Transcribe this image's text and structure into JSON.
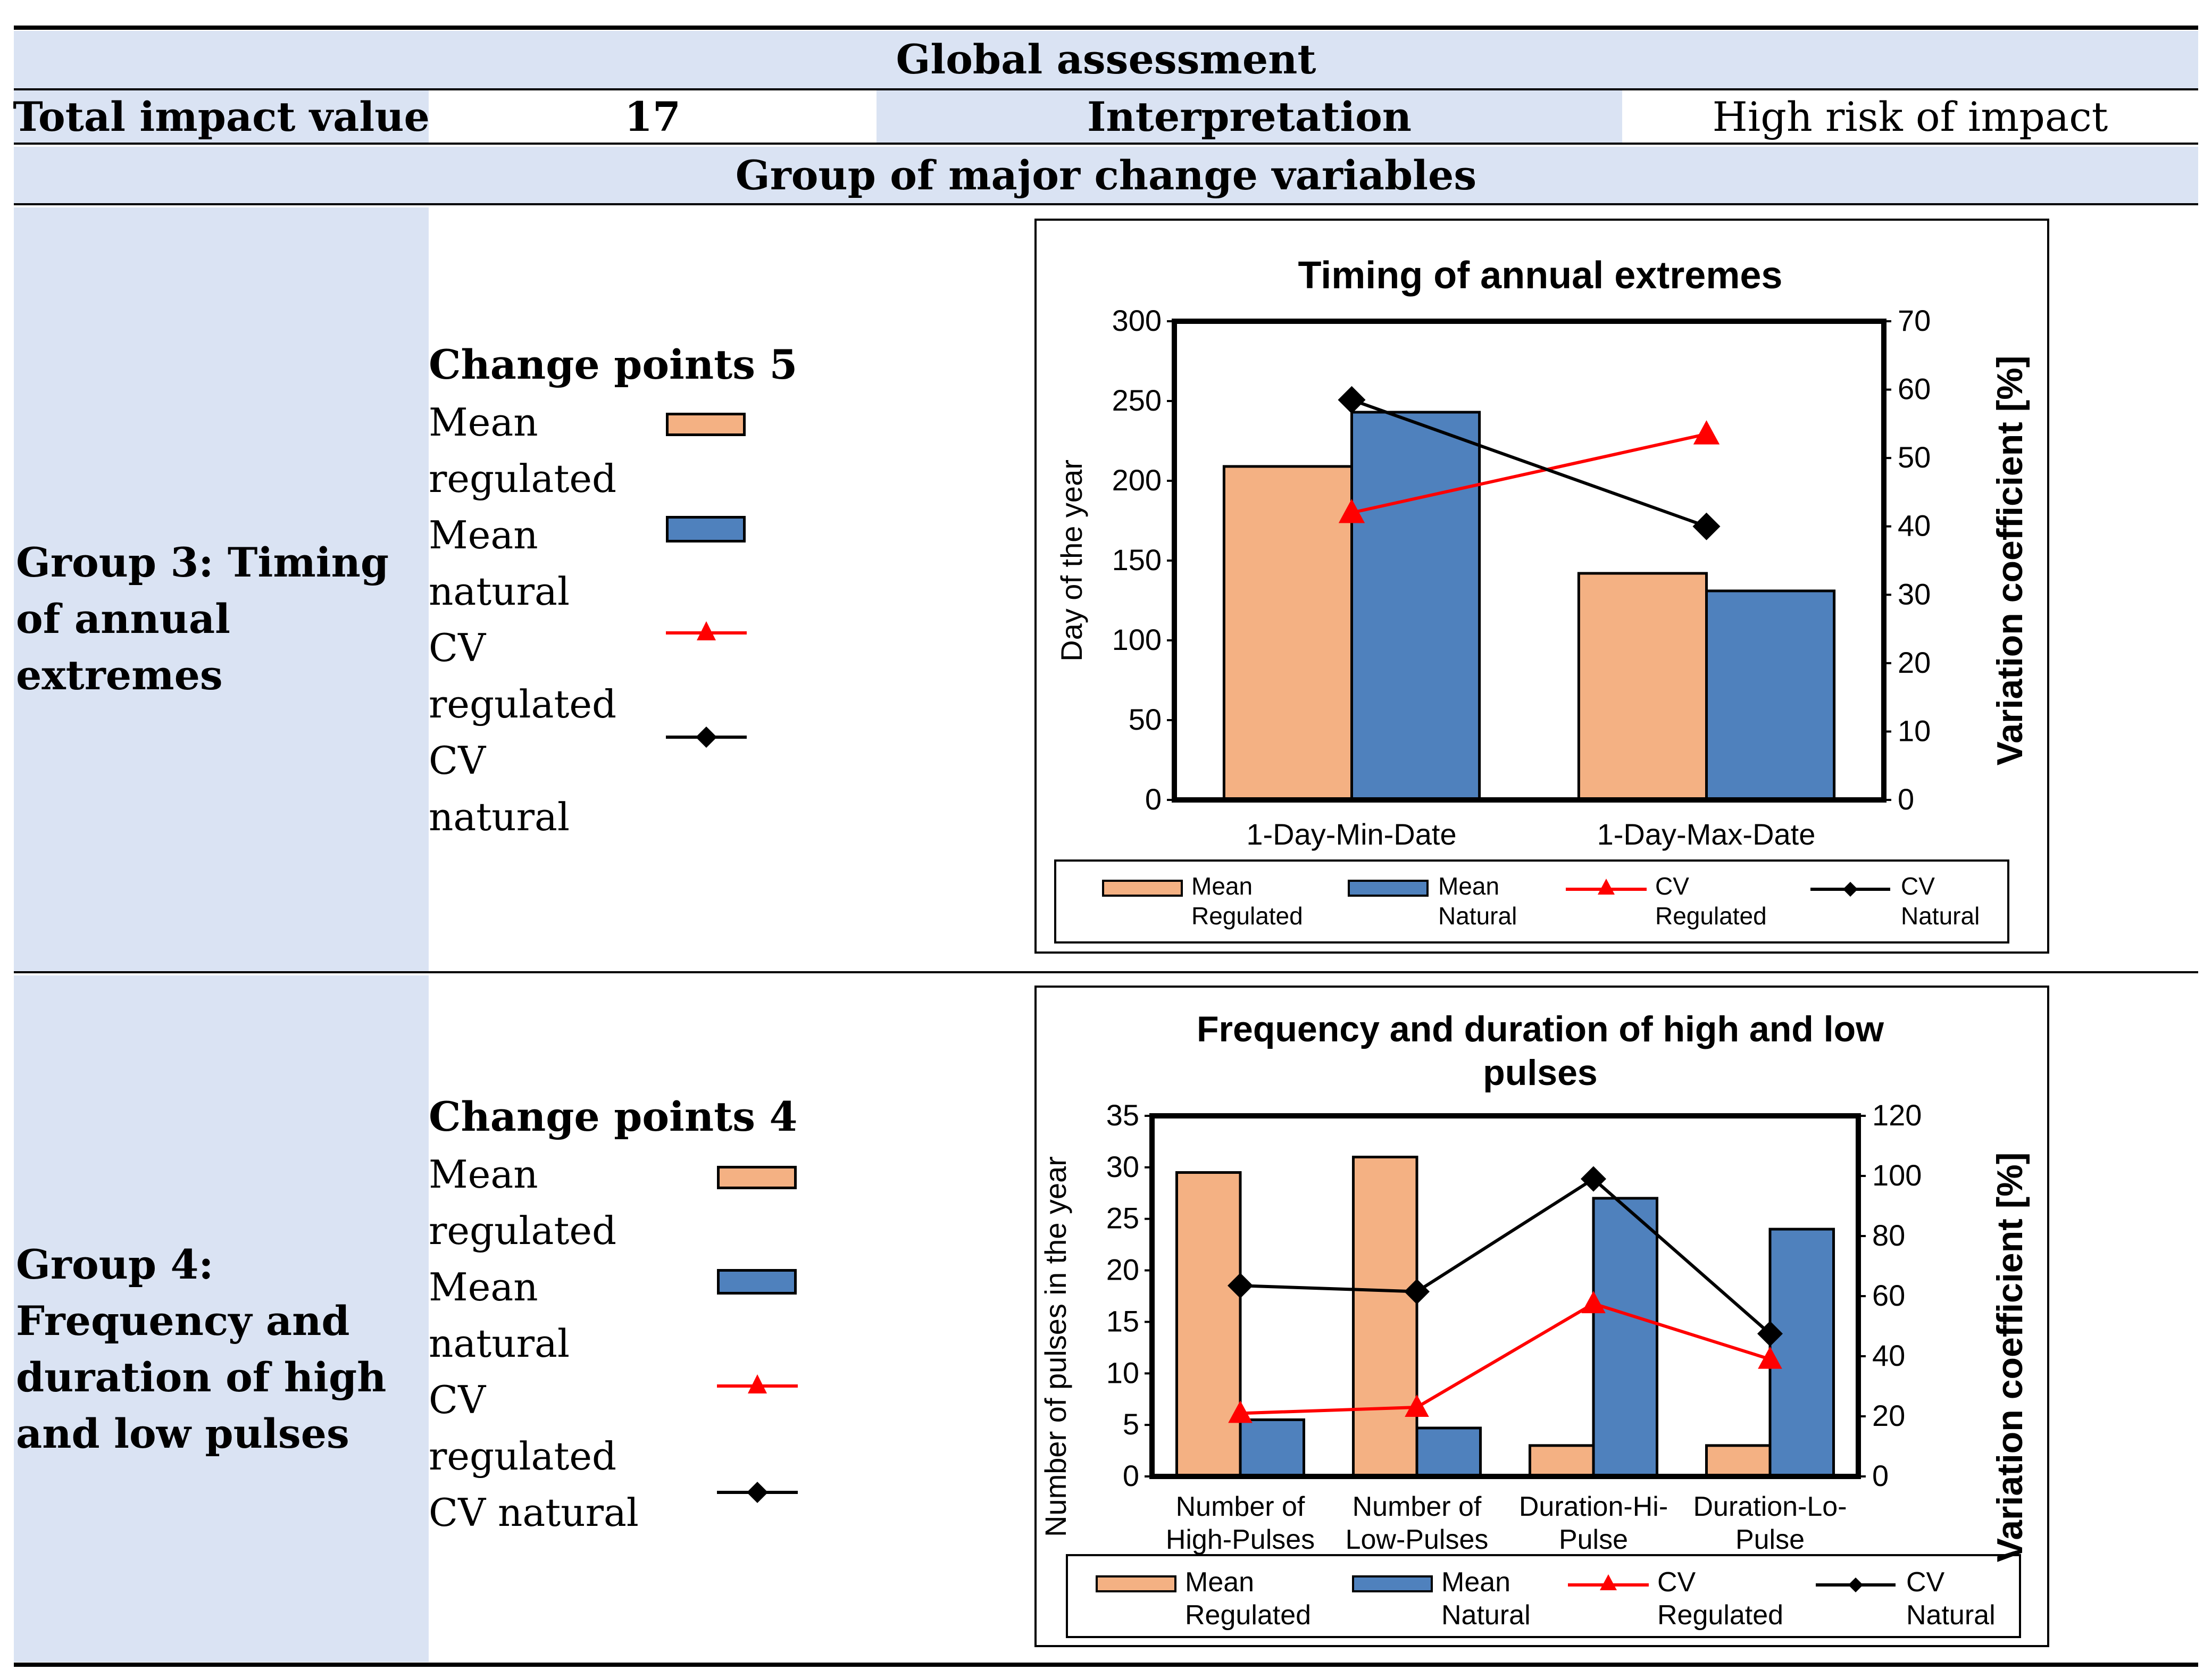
{
  "header": {
    "global_title": "Global assessment",
    "total_label": "Total impact value",
    "total_value": "17",
    "interp_label": "Interpretation",
    "interp_value": "High risk of impact",
    "group_header": "Group of major change variables"
  },
  "colors": {
    "band": "#dae3f3",
    "mean_regulated": "#f4b183",
    "mean_natural": "#4f81bd",
    "cv_regulated": "#ff0000",
    "cv_natural": "#000000"
  },
  "groups": [
    {
      "title": "Group 3: Timing of annual extremes",
      "change_points": "Change points 5",
      "legend_lines": [
        "Mean",
        "regulated",
        "Mean",
        "natural",
        "CV",
        "regulated",
        "CV",
        "natural"
      ]
    },
    {
      "title": "Group 4: Frequency and duration of high and low pulses",
      "change_points": "Change points 4",
      "legend_lines": [
        "Mean",
        "regulated",
        "Mean",
        "natural",
        "CV",
        "regulated",
        "CV natural"
      ]
    }
  ],
  "chart_data": [
    {
      "type": "bar",
      "title": "Timing of annual extremes",
      "categories": [
        "1-Day-Min-Date",
        "1-Day-Max-Date"
      ],
      "ylabel": "Day of the year",
      "y2label": "Variation coefficient [%]",
      "ylim": [
        0,
        300
      ],
      "y2lim": [
        0,
        70
      ],
      "yticks": [
        "0",
        "50",
        "100",
        "150",
        "200",
        "250",
        "300"
      ],
      "y2ticks": [
        "0",
        "10",
        "20",
        "30",
        "40",
        "50",
        "60",
        "70"
      ],
      "series": [
        {
          "name": "Mean Regulated",
          "kind": "bar",
          "axis": "left",
          "values": [
            209,
            142
          ]
        },
        {
          "name": "Mean Natural",
          "kind": "bar",
          "axis": "left",
          "values": [
            243,
            131
          ]
        },
        {
          "name": "CV Regulated",
          "kind": "line",
          "axis": "right",
          "values": [
            42,
            53.5
          ]
        },
        {
          "name": "CV Natural",
          "kind": "line",
          "axis": "right",
          "values": [
            58.5,
            40
          ]
        }
      ],
      "legend": [
        {
          "line1": "Mean",
          "line2": "Regulated"
        },
        {
          "line1": "Mean",
          "line2": "Natural"
        },
        {
          "line1": "CV",
          "line2": "Regulated"
        },
        {
          "line1": "CV",
          "line2": "Natural"
        }
      ]
    },
    {
      "type": "bar",
      "title_lines": [
        "Frequency and duration of high and low",
        "pulses"
      ],
      "categories": [
        {
          "line1": "Number of",
          "line2": "High-Pulses"
        },
        {
          "line1": "Number of",
          "line2": "Low-Pulses"
        },
        {
          "line1": "Duration-Hi-",
          "line2": "Pulse"
        },
        {
          "line1": "Duration-Lo-",
          "line2": "Pulse"
        }
      ],
      "ylabel": "Number of pulses in the year",
      "y2label": "Variation coefficient [%]",
      "ylim": [
        0,
        35
      ],
      "y2lim": [
        0,
        120
      ],
      "yticks": [
        "0",
        "5",
        "10",
        "15",
        "20",
        "25",
        "30",
        "35"
      ],
      "y2ticks": [
        "0",
        "20",
        "40",
        "60",
        "80",
        "100",
        "120"
      ],
      "series": [
        {
          "name": "Mean Regulated",
          "kind": "bar",
          "axis": "left",
          "values": [
            29.5,
            31,
            3,
            3
          ]
        },
        {
          "name": "Mean Natural",
          "kind": "bar",
          "axis": "left",
          "values": [
            5.5,
            4.7,
            27,
            24
          ]
        },
        {
          "name": "CV Regulated",
          "kind": "line",
          "axis": "right",
          "values": [
            21,
            23,
            57.5,
            39
          ]
        },
        {
          "name": "CV Natural",
          "kind": "line",
          "axis": "right",
          "values": [
            63.5,
            61.5,
            99,
            47.5
          ]
        }
      ],
      "legend": [
        {
          "line1": "Mean",
          "line2": "Regulated"
        },
        {
          "line1": "Mean",
          "line2": "Natural"
        },
        {
          "line1": "CV",
          "line2": "Regulated"
        },
        {
          "line1": "CV",
          "line2": "Natural"
        }
      ]
    }
  ]
}
